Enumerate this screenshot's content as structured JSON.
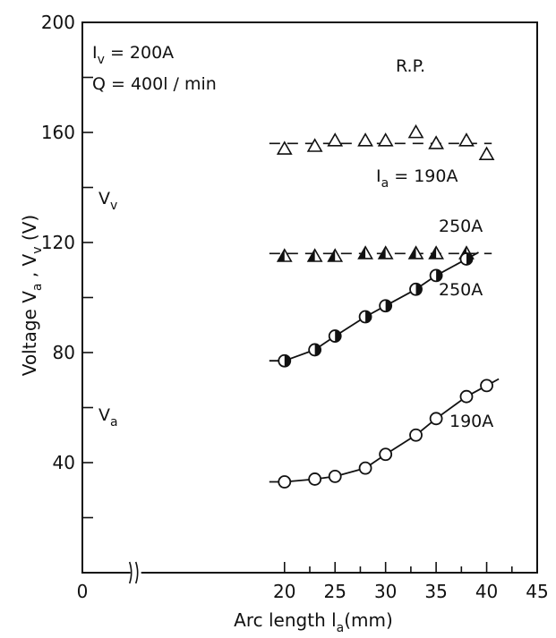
{
  "chart_data": {
    "type": "scatter",
    "xlabel": "Arc length  l",
    "xlabel_sub": "a",
    "xlabel_unit": "(mm)",
    "ylabel": "Voltage   V",
    "ylabel_sub_a": "a",
    "ylabel_sep": " , V",
    "ylabel_sub_v": "v",
    "ylabel_unit": " (V)",
    "xlim": [
      0,
      45
    ],
    "ylim": [
      0,
      200
    ],
    "x_ticks": [
      "0",
      "20",
      "25",
      "30",
      "35",
      "40",
      "45"
    ],
    "y_ticks": [
      "200",
      "160",
      "120",
      "80",
      "40"
    ],
    "x_axis_break": true,
    "conditions": {
      "iv_label": "I",
      "iv_sub": "v",
      "iv_value": " = 200A",
      "q_text": "Q = 400l / min",
      "rp_text": "R.P."
    },
    "series": [
      {
        "quantity": "Vv",
        "current_label": "I",
        "current_sub": "a",
        "current_value": " = 190A",
        "marker": "open-triangle",
        "fit": "dashed",
        "x": [
          20,
          23,
          25,
          28,
          30,
          33,
          35,
          38,
          40
        ],
        "y": [
          154,
          155,
          157,
          157,
          157,
          160,
          156,
          157,
          152
        ],
        "fit_y": [
          156,
          156
        ]
      },
      {
        "quantity": "Vv",
        "current_text": "250A",
        "marker": "half-filled-triangle",
        "fit": "dashed",
        "x": [
          20,
          23,
          25,
          28,
          30,
          33,
          35,
          38
        ],
        "y": [
          115,
          115,
          115,
          116,
          116,
          116,
          116,
          116
        ],
        "fit_y": [
          116,
          116
        ]
      },
      {
        "quantity": "Va",
        "current_text": "250A",
        "marker": "half-filled-circle",
        "fit": "solid",
        "x": [
          20,
          23,
          25,
          28,
          30,
          33,
          35,
          38
        ],
        "y": [
          77,
          81,
          86,
          93,
          97,
          103,
          108,
          114
        ]
      },
      {
        "quantity": "Va",
        "current_text": "190A",
        "marker": "open-circle",
        "fit": "solid",
        "x": [
          20,
          23,
          25,
          28,
          30,
          33,
          35,
          38,
          40
        ],
        "y": [
          33,
          34,
          35,
          38,
          43,
          50,
          56,
          64,
          68
        ]
      }
    ],
    "labels": {
      "vv": "V",
      "vv_sub": "v",
      "va": "V",
      "va_sub": "a"
    }
  }
}
